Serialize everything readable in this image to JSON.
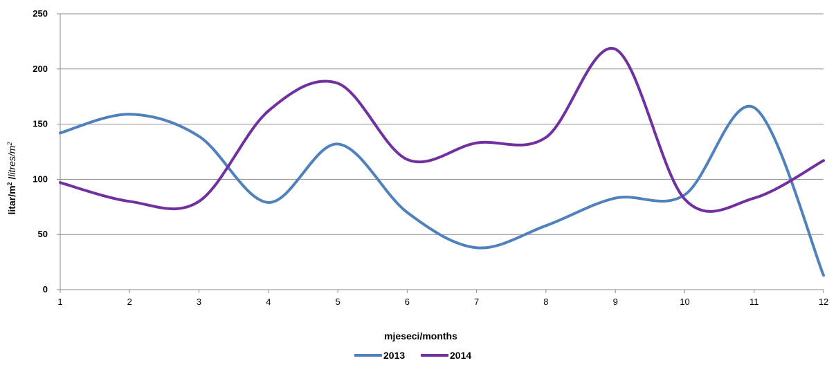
{
  "chart_data": {
    "type": "line",
    "title": "",
    "xlabel": "mjeseci/months",
    "ylabel": {
      "main": "litar/m",
      "main_sup": "2",
      "sep": " /",
      "italic": "litres/m",
      "italic_sup": "2"
    },
    "categories": [
      1,
      2,
      3,
      4,
      5,
      6,
      7,
      8,
      9,
      10,
      11,
      12
    ],
    "ylim": [
      0,
      250
    ],
    "yticks": [
      0,
      50,
      100,
      150,
      200,
      250
    ],
    "grid": "horizontal",
    "legend_position": "bottom",
    "series": [
      {
        "name": "2013",
        "color": "#4F81BD",
        "values": [
          142,
          159,
          139,
          79,
          132,
          70,
          38,
          58,
          83,
          86,
          165,
          13
        ]
      },
      {
        "name": "2014",
        "color": "#7030A0",
        "values": [
          97,
          80,
          80,
          162,
          187,
          118,
          133,
          138,
          218,
          82,
          83,
          117
        ]
      }
    ]
  }
}
